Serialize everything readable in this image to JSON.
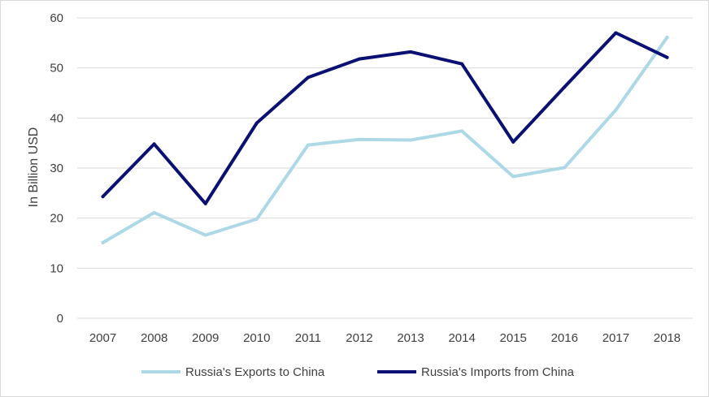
{
  "chart_data": {
    "type": "line",
    "title": "",
    "xlabel": "",
    "ylabel": "In Billion USD",
    "ylim": [
      0,
      60
    ],
    "yticks": [
      0,
      10,
      20,
      30,
      40,
      50,
      60
    ],
    "grid": true,
    "legend_position": "bottom",
    "categories": [
      "2007",
      "2008",
      "2009",
      "2010",
      "2011",
      "2012",
      "2013",
      "2014",
      "2015",
      "2016",
      "2017",
      "2018"
    ],
    "series": [
      {
        "name": "Russia's Exports to China",
        "color": "#add8e6",
        "values": [
          15.1,
          21.1,
          16.6,
          19.8,
          34.6,
          35.7,
          35.6,
          37.4,
          28.3,
          30.1,
          41.6,
          56.1
        ]
      },
      {
        "name": "Russia's Imports from China",
        "color": "#0a1172",
        "values": [
          24.3,
          34.8,
          22.9,
          39.0,
          48.1,
          51.8,
          53.2,
          50.8,
          35.2,
          46.2,
          57.0,
          52.1
        ]
      }
    ]
  }
}
